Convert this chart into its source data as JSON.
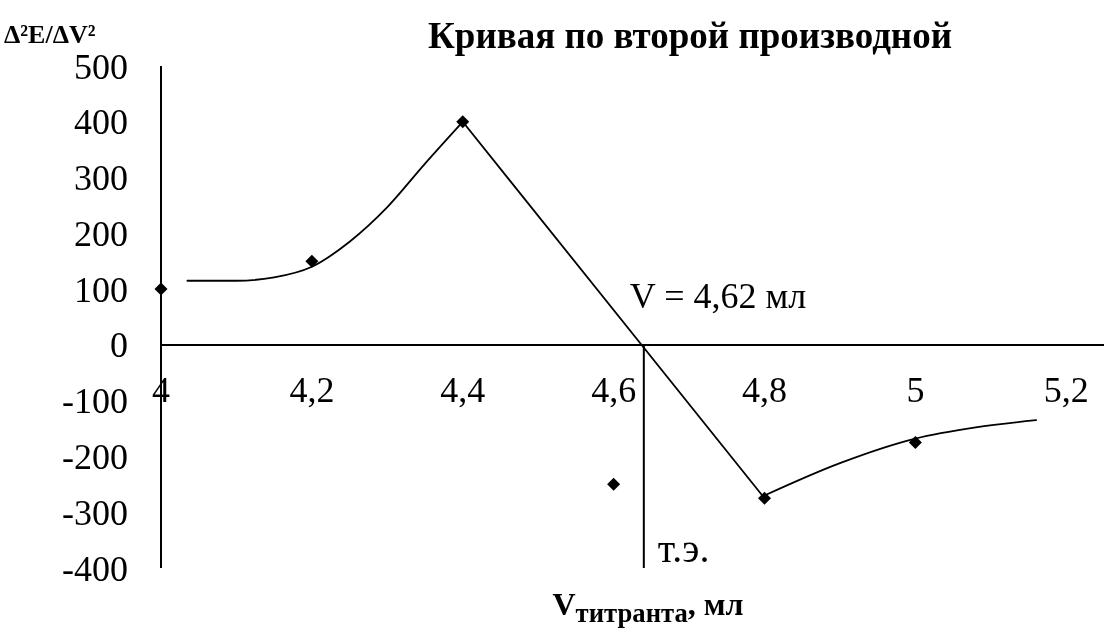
{
  "chart_data": {
    "type": "scatter",
    "title": "Кривая по второй производной",
    "xlabel": "V$_{титранта}$, мл",
    "ylabel": "Δ²E/ΔV²",
    "xlim": [
      4,
      5.25
    ],
    "xticks": [
      4,
      {
        "value": 4.2,
        "label": "4,2"
      },
      {
        "value": 4.4,
        "label": "4,4"
      },
      {
        "value": 4.6,
        "label": "4,6"
      },
      {
        "value": 4.8,
        "label": "4,8"
      },
      5,
      {
        "value": 5.2,
        "label": "5,2"
      }
    ],
    "ylim": [
      -400,
      500
    ],
    "yticks": [
      -400,
      -300,
      -200,
      -100,
      0,
      100,
      200,
      300,
      400,
      500
    ],
    "marker": "diamond",
    "series": [
      {
        "type": "scatter",
        "color": "#000000",
        "x": [
          4,
          4.2,
          4.4,
          4.6,
          4.8,
          5
        ],
        "values": [
          100,
          150,
          400,
          -250,
          -275,
          -175
        ]
      },
      {
        "type": "line",
        "color": "#000000",
        "marker": "none",
        "x": [
          4.035,
          4.1,
          4.15,
          4.2,
          4.25,
          4.3,
          4.35,
          4.4
        ],
        "values": [
          115,
          115,
          121,
          140,
          185,
          247,
          325,
          400
        ]
      },
      {
        "type": "line",
        "color": "#000000",
        "marker": "none",
        "x": [
          4.4,
          4.8
        ],
        "values": [
          400,
          -275
        ]
      },
      {
        "type": "line",
        "color": "#000000",
        "marker": "none",
        "x": [
          4.8,
          4.9,
          5,
          5.08,
          5.16
        ],
        "values": [
          -270,
          -212,
          -168,
          -148,
          -135
        ]
      }
    ],
    "ref_lines": [
      {
        "axis": "x",
        "value": 4.64,
        "label": "т.э."
      }
    ],
    "annotations": [
      {
        "text": "V = 4,62 мл",
        "x": 4.64,
        "y": 0
      }
    ]
  }
}
